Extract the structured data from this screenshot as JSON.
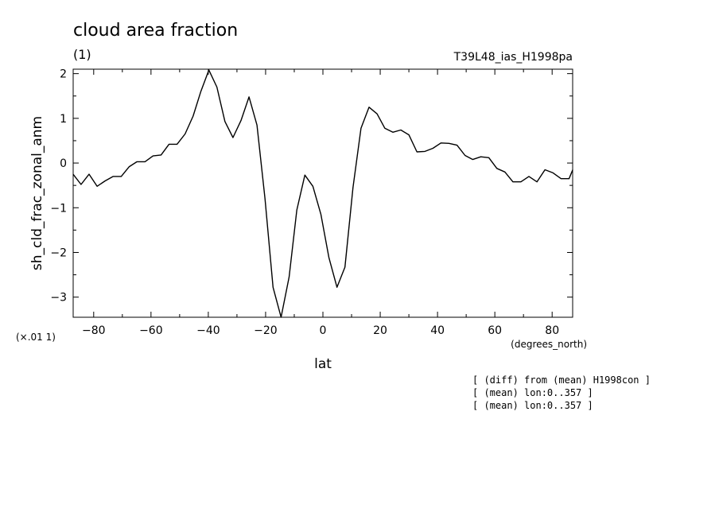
{
  "chart_data": {
    "type": "line",
    "title": "cloud area fraction",
    "units": "(1)",
    "run_label": "T39L48_ias_H1998pa",
    "xlabel": "lat",
    "xunits": "(degrees_north)",
    "ylabel": "sh_cld_frac_zonal_anm",
    "yscale_label": "(×.01 1)",
    "xlim": [
      -87.16,
      87.16
    ],
    "ylim": [
      -3.45,
      2.1
    ],
    "xticks": [
      -80,
      -60,
      -40,
      -20,
      0,
      20,
      40,
      60,
      80
    ],
    "xtick_labels": [
      "−80",
      "−60",
      "−40",
      "−20",
      "0",
      "20",
      "40",
      "60",
      "80"
    ],
    "yticks": [
      -3,
      -2,
      -1,
      0,
      1,
      2
    ],
    "ytick_labels": [
      "−3",
      "−2",
      "−1",
      "0",
      "1",
      "2"
    ],
    "notes": [
      "[ (diff) from (mean) H1998con ]",
      "[ (mean) lon:0..357 ]",
      "[ (mean) lon:0..357 ]"
    ],
    "series": [
      {
        "x": [
          -87.2,
          -84.4,
          -81.6,
          -78.8,
          -76.0,
          -73.2,
          -70.4,
          -67.6,
          -64.9,
          -62.1,
          -59.3,
          -56.5,
          -53.7,
          -50.9,
          -48.1,
          -45.3,
          -42.6,
          -39.8,
          -37.0,
          -34.2,
          -31.4,
          -28.6,
          -25.8,
          -23.0,
          -20.2,
          -17.4,
          -14.6,
          -11.8,
          -9.1,
          -6.3,
          -3.5,
          -0.7,
          2.1,
          4.9,
          7.7,
          10.5,
          13.3,
          16.1,
          18.9,
          21.6,
          24.4,
          27.2,
          30.0,
          32.8,
          35.6,
          38.4,
          41.2,
          44.0,
          46.8,
          49.6,
          52.3,
          55.1,
          57.9,
          60.7,
          63.5,
          66.3,
          69.1,
          71.9,
          74.7,
          77.5,
          80.3,
          83.1,
          85.9,
          87.2
        ],
        "y": [
          -0.25,
          -0.48,
          -0.25,
          -0.52,
          -0.4,
          -0.3,
          -0.3,
          -0.08,
          0.03,
          0.03,
          0.16,
          0.18,
          0.42,
          0.42,
          0.65,
          1.05,
          1.6,
          2.08,
          1.7,
          0.93,
          0.57,
          0.95,
          1.48,
          0.85,
          -0.8,
          -2.78,
          -3.45,
          -2.55,
          -1.05,
          -0.27,
          -0.52,
          -1.15,
          -2.12,
          -2.78,
          -2.33,
          -0.55,
          0.78,
          1.25,
          1.1,
          0.78,
          0.69,
          0.74,
          0.63,
          0.25,
          0.26,
          0.33,
          0.45,
          0.44,
          0.4,
          0.17,
          0.08,
          0.14,
          0.12,
          -0.12,
          -0.2,
          -0.42,
          -0.42,
          -0.3,
          -0.42,
          -0.15,
          -0.22,
          -0.35,
          -0.35,
          -0.15
        ]
      }
    ]
  }
}
